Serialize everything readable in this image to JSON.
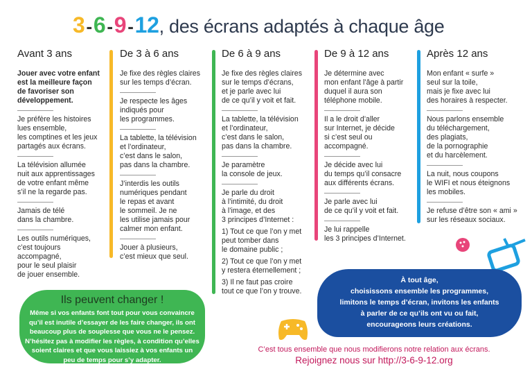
{
  "title": {
    "n1": "3",
    "n2": "6",
    "n3": "9",
    "n4": "12",
    "rest": ", des écrans adaptés à chaque âge",
    "sep": "-"
  },
  "colors": {
    "yellow": "#f7b928",
    "green": "#3fb653",
    "pink": "#e8457a",
    "blue": "#1ea0e0",
    "navy": "#1b4fa0"
  },
  "columns": [
    {
      "heading": "Avant 3 ans",
      "blocks": [
        "Jouer avec votre enfant\nest la meilleure façon\nde favoriser son\ndéveloppement.",
        "Je préfère les histoires\nlues ensemble,\nles comptines et les jeux\npartagés aux écrans.",
        "La télévision allumée\nnuit aux apprentissages\nde votre enfant même\ns’il ne la regarde pas.",
        "Jamais de télé\ndans la chambre.",
        "Les outils numériques,\nc’est toujours\naccompagné,\npour le seul plaisir\nde jouer ensemble."
      ]
    },
    {
      "heading": "De 3 à 6 ans",
      "blocks": [
        "Je fixe des règles claires\nsur les temps d’écran.",
        "Je respecte les âges\nindiqués pour\nles programmes.",
        "La tablette, la télévision\net l’ordinateur,\nc’est dans le salon,\npas dans la chambre.",
        "J’interdis les outils\nnumériques pendant\nle repas et avant\nle sommeil. Je ne\nles utilise jamais pour\ncalmer mon enfant.",
        "Jouer à plusieurs,\nc’est mieux que seul."
      ]
    },
    {
      "heading": "De 6 à 9 ans",
      "blocks": [
        "Je fixe des règles claires\nsur le temps d’écrans,\net je parle avec lui\nde ce qu’il y voit et fait.",
        "La tablette, la télévision\net l’ordinateur,\nc’est dans le salon,\npas dans la chambre.",
        "Je paramètre\nla console de jeux.",
        "Je parle du droit\nà l’intimité, du droit\nà l’image, et des\n3 principes d’Internet :"
      ],
      "principles": [
        "1) Tout ce que l’on y met\npeut tomber dans\nle domaine public ;",
        "2) Tout ce que l’on y met\ny restera éternellement ;",
        "3) Il ne faut pas croire\ntout ce que l’on y trouve."
      ]
    },
    {
      "heading": "De 9 à 12 ans",
      "blocks": [
        "Je détermine avec\nmon enfant l’âge à partir\nduquel il aura son\ntéléphone mobile.",
        "Il a le droit d’aller\nsur Internet, je décide\nsi c’est seul ou\naccompagné.",
        "Je décide avec lui\ndu temps qu’il consacre\naux différents écrans.",
        "Je parle avec lui\nde ce qu’il y voit et fait.",
        "Je lui rappelle\nles 3 principes d’Internet."
      ]
    },
    {
      "heading": "Après 12 ans",
      "blocks": [
        "Mon enfant « surfe »\nseul sur la toile,\nmais je fixe avec lui\ndes horaires à respecter.",
        "Nous parlons ensemble\ndu téléchargement,\ndes plagiats,\nde la pornographie\net du harcèlement.",
        "La nuit, nous coupons\nle WIFI et nous éteignons\nles mobiles.",
        "Je refuse d’être son « ami »\nsur les réseaux sociaux."
      ]
    }
  ],
  "green_bubble": {
    "title": "Ils peuvent changer !",
    "text": "Même si vos enfants font tout pour vous convaincre qu’il est inutile d’essayer de les faire changer, ils ont beaucoup plus de souplesse que vous ne le pensez. N’hésitez pas à modifier les règles, à condition qu’elles soient claires et que vous laissiez à vos enfants un peu de temps pour s’y adapter."
  },
  "blue_bubble": {
    "text": "À tout âge,\nchoisissons ensemble les programmes,\nlimitons le temps d’écran, invitons les enfants\nà parler de ce qu’ils ont vu ou fait,\nencourageons leurs créations."
  },
  "footer": {
    "line1": "C’est tous ensemble que nous modifierons notre relation aux écrans.",
    "line2": "Rejoignez nous sur http://3-6-9-12.org"
  },
  "icons": [
    "tv-icon",
    "gamepad-icon",
    "ladybug-icon"
  ]
}
